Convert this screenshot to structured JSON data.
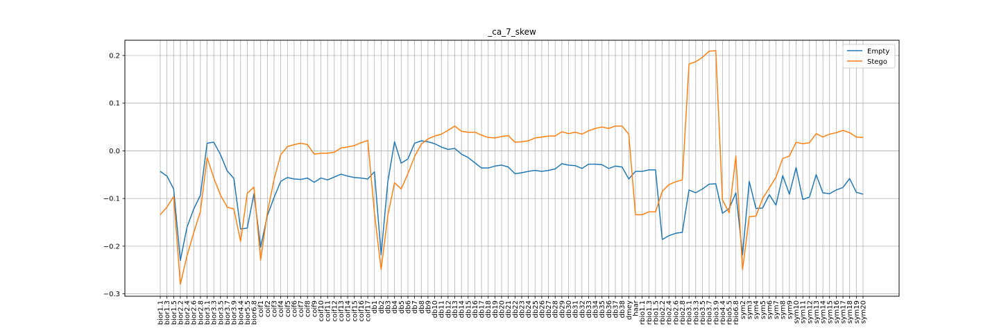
{
  "chart_data": {
    "type": "line",
    "title": "_ca_7_skew",
    "xlabel": "",
    "ylabel": "",
    "ylim": [
      -0.305,
      0.232
    ],
    "yticks": [
      -0.3,
      -0.2,
      -0.1,
      0.0,
      0.1,
      0.2
    ],
    "ytick_labels": [
      "−0.3",
      "−0.2",
      "−0.1",
      "0.0",
      "0.1",
      "0.2"
    ],
    "grid": true,
    "legend": "top-right",
    "categories": [
      "bior1.1",
      "bior1.3",
      "bior1.5",
      "bior2.2",
      "bior2.4",
      "bior2.6",
      "bior2.8",
      "bior3.1",
      "bior3.3",
      "bior3.5",
      "bior3.7",
      "bior3.9",
      "bior4.4",
      "bior5.5",
      "bior6.8",
      "coif1",
      "coif2",
      "coif3",
      "coif4",
      "coif5",
      "coif6",
      "coif7",
      "coif8",
      "coif9",
      "coif10",
      "coif11",
      "coif12",
      "coif13",
      "coif14",
      "coif15",
      "coif16",
      "coif17",
      "db1",
      "db2",
      "db3",
      "db4",
      "db5",
      "db6",
      "db7",
      "db8",
      "db9",
      "db10",
      "db11",
      "db12",
      "db13",
      "db14",
      "db15",
      "db16",
      "db17",
      "db18",
      "db19",
      "db20",
      "db21",
      "db22",
      "db23",
      "db24",
      "db25",
      "db26",
      "db27",
      "db28",
      "db29",
      "db30",
      "db31",
      "db32",
      "db33",
      "db34",
      "db35",
      "db36",
      "db37",
      "db38",
      "dmey",
      "haar",
      "rbio1.1",
      "rbio1.3",
      "rbio1.5",
      "rbio2.2",
      "rbio2.4",
      "rbio2.6",
      "rbio2.8",
      "rbio3.1",
      "rbio3.3",
      "rbio3.5",
      "rbio3.7",
      "rbio3.9",
      "rbio4.4",
      "rbio5.5",
      "rbio6.8",
      "sym2",
      "sym3",
      "sym4",
      "sym5",
      "sym6",
      "sym7",
      "sym8",
      "sym9",
      "sym10",
      "sym11",
      "sym12",
      "sym13",
      "sym14",
      "sym15",
      "sym16",
      "sym17",
      "sym18",
      "sym19",
      "sym20"
    ],
    "series": [
      {
        "name": "Empty",
        "color": "#1f77b4",
        "values": [
          -0.043,
          -0.053,
          -0.08,
          -0.23,
          -0.16,
          -0.122,
          -0.093,
          0.016,
          0.018,
          -0.008,
          -0.042,
          -0.058,
          -0.164,
          -0.162,
          -0.09,
          -0.202,
          -0.136,
          -0.098,
          -0.064,
          -0.056,
          -0.059,
          -0.06,
          -0.057,
          -0.066,
          -0.057,
          -0.061,
          -0.055,
          -0.049,
          -0.053,
          -0.056,
          -0.057,
          -0.059,
          -0.044,
          -0.218,
          -0.065,
          0.019,
          -0.026,
          -0.017,
          0.016,
          0.021,
          0.019,
          0.015,
          0.008,
          0.003,
          0.005,
          -0.007,
          -0.014,
          -0.025,
          -0.036,
          -0.036,
          -0.032,
          -0.03,
          -0.034,
          -0.048,
          -0.046,
          -0.043,
          -0.041,
          -0.043,
          -0.041,
          -0.038,
          -0.027,
          -0.03,
          -0.031,
          -0.037,
          -0.028,
          -0.028,
          -0.029,
          -0.037,
          -0.032,
          -0.034,
          -0.059,
          -0.043,
          -0.043,
          -0.04,
          -0.04,
          -0.186,
          -0.178,
          -0.173,
          -0.171,
          -0.082,
          -0.088,
          -0.08,
          -0.07,
          -0.069,
          -0.131,
          -0.121,
          -0.088,
          -0.218,
          -0.064,
          -0.121,
          -0.12,
          -0.092,
          -0.114,
          -0.052,
          -0.091,
          -0.035,
          -0.102,
          -0.097,
          -0.05,
          -0.088,
          -0.09,
          -0.082,
          -0.077,
          -0.058,
          -0.087,
          -0.091
        ]
      },
      {
        "name": "Stego",
        "color": "#ff7f0e",
        "values": [
          -0.134,
          -0.118,
          -0.096,
          -0.28,
          -0.22,
          -0.172,
          -0.127,
          -0.014,
          -0.057,
          -0.093,
          -0.118,
          -0.122,
          -0.19,
          -0.089,
          -0.076,
          -0.229,
          -0.13,
          -0.06,
          -0.008,
          0.009,
          0.013,
          0.016,
          0.013,
          -0.007,
          -0.005,
          -0.005,
          -0.003,
          0.006,
          0.008,
          0.011,
          0.017,
          0.022,
          -0.13,
          -0.249,
          -0.136,
          -0.067,
          -0.08,
          -0.048,
          -0.012,
          0.014,
          0.025,
          0.031,
          0.035,
          0.043,
          0.052,
          0.041,
          0.039,
          0.039,
          0.033,
          0.028,
          0.027,
          0.03,
          0.032,
          0.018,
          0.019,
          0.021,
          0.027,
          0.029,
          0.031,
          0.031,
          0.04,
          0.036,
          0.039,
          0.035,
          0.042,
          0.047,
          0.05,
          0.047,
          0.052,
          0.052,
          0.035,
          -0.134,
          -0.134,
          -0.128,
          -0.128,
          -0.085,
          -0.071,
          -0.065,
          -0.061,
          0.182,
          0.187,
          0.196,
          0.209,
          0.21,
          -0.103,
          -0.13,
          -0.011,
          -0.249,
          -0.138,
          -0.137,
          -0.1,
          -0.078,
          -0.055,
          -0.016,
          -0.011,
          0.018,
          0.015,
          0.017,
          0.036,
          0.029,
          0.035,
          0.038,
          0.043,
          0.038,
          0.029,
          0.028
        ]
      }
    ]
  }
}
